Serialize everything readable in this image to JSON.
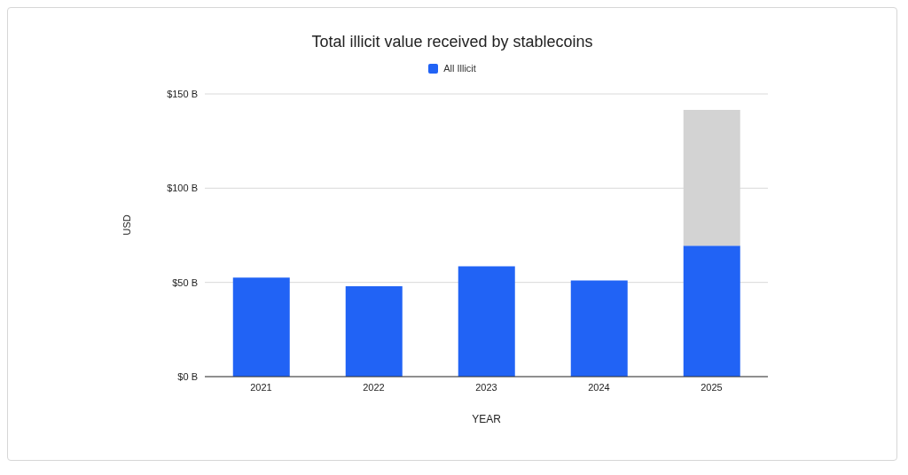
{
  "chart_data": {
    "type": "bar",
    "title": "Total illicit value received by stablecoins",
    "xlabel": "YEAR",
    "ylabel": "USD",
    "categories": [
      "2021",
      "2022",
      "2023",
      "2024",
      "2025"
    ],
    "stacked": true,
    "series": [
      {
        "name": "All Illicit",
        "color": "#2163f5",
        "values": [
          52.5,
          48,
          58.5,
          51,
          69.5
        ]
      },
      {
        "color": "#d3d3d3",
        "values": [
          null,
          null,
          null,
          null,
          72
        ]
      }
    ],
    "ylim": [
      0,
      150
    ],
    "yticks": [
      {
        "value": 0,
        "label": "$0 B"
      },
      {
        "value": 50,
        "label": "$50 B"
      },
      {
        "value": 100,
        "label": "$100 B"
      },
      {
        "value": 150,
        "label": "$150 B"
      }
    ],
    "grid": "y",
    "legend": "top"
  }
}
